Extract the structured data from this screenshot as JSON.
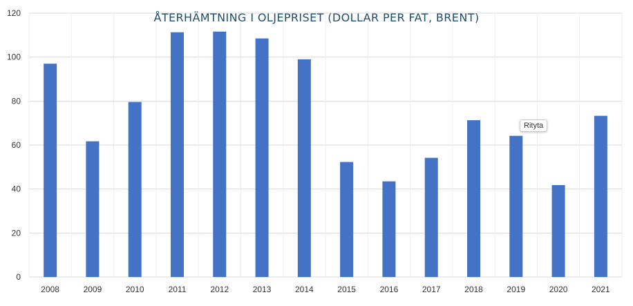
{
  "chart_data": {
    "type": "bar",
    "title": "ÅTERHÄMTNING I OLJEPRISET (DOLLAR PER FAT, BRENT)",
    "categories": [
      "2008",
      "2009",
      "2010",
      "2011",
      "2012",
      "2013",
      "2014",
      "2015",
      "2016",
      "2017",
      "2018",
      "2019",
      "2020",
      "2021"
    ],
    "values": [
      97,
      61.7,
      79.6,
      111.3,
      111.6,
      108.5,
      99,
      52.3,
      43.5,
      54.2,
      71.3,
      64.2,
      41.8,
      73.3
    ],
    "ylim": [
      0,
      120
    ],
    "yticks": [
      0,
      20,
      40,
      60,
      80,
      100,
      120
    ],
    "grid": true,
    "legend": "none",
    "bar_color": "#4472c4",
    "grid_color": "#d9d9d9"
  },
  "tooltip": {
    "text": "Rityta"
  }
}
